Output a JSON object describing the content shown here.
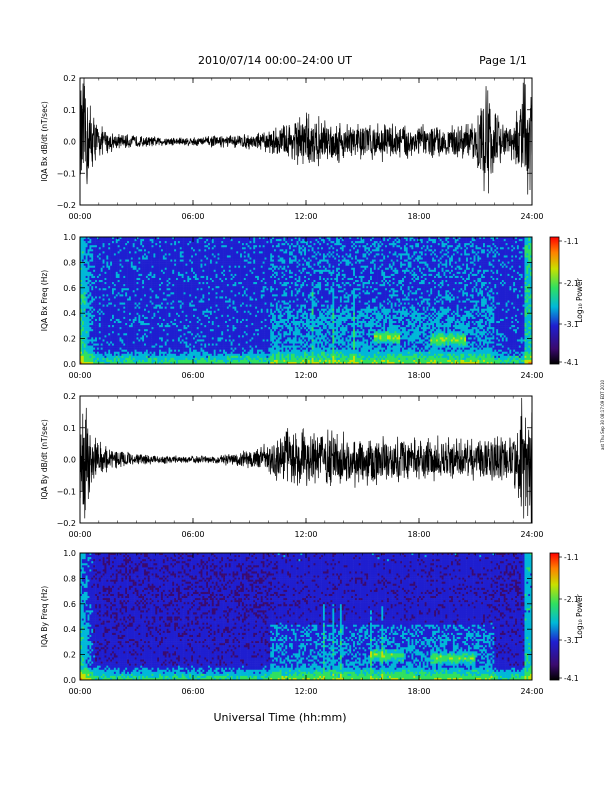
{
  "header": {
    "title": "2010/07/14  00:00–24:00 UT",
    "page": "Page 1/1"
  },
  "footer": {
    "xlabel": "Universal Time (hh:mm)"
  },
  "side_stamp": "ast Thu Sep 30 08:17:09 EDT 2010",
  "colors": {
    "trace": "#000000",
    "colormap": [
      "#000000",
      "#3a0a6e",
      "#1f1fd0",
      "#00b8d8",
      "#30e060",
      "#c8e000",
      "#ff8000",
      "#ff0000"
    ]
  },
  "chart_data": [
    {
      "type": "line",
      "title": "",
      "ylabel": "IQA Bx dB/dt (nT/sec)",
      "xlabel": "",
      "xlim": [
        0,
        24
      ],
      "ylim": [
        -0.2,
        0.2
      ],
      "x_ticks": [
        "00:00",
        "06:00",
        "12:00",
        "18:00",
        "24:00"
      ],
      "y_ticks": [
        "0.2",
        "0.1",
        "0.0",
        "−0.1",
        "−0.2"
      ],
      "series": [
        {
          "x": [
            0,
            0.3,
            0.6,
            1,
            2,
            3,
            4,
            5,
            6,
            7,
            8,
            9,
            10,
            10.5,
            11,
            11.5,
            12,
            12.5,
            13,
            14,
            15,
            16,
            17,
            18,
            19,
            20,
            21,
            21.5,
            22,
            22.5,
            23,
            23.5,
            24
          ],
          "amplitude": [
            0.2,
            0.2,
            0.12,
            0.05,
            0.025,
            0.02,
            0.015,
            0.015,
            0.015,
            0.018,
            0.02,
            0.025,
            0.035,
            0.05,
            0.06,
            0.08,
            0.09,
            0.08,
            0.07,
            0.065,
            0.06,
            0.06,
            0.06,
            0.055,
            0.05,
            0.05,
            0.06,
            0.2,
            0.12,
            0.05,
            0.06,
            0.2,
            0.2
          ]
        }
      ]
    },
    {
      "type": "heatmap",
      "title": "",
      "ylabel": "IQA Bx Freq (Hz)",
      "xlabel": "",
      "xlim": [
        0,
        24
      ],
      "ylim": [
        0,
        1.0
      ],
      "x_ticks": [
        "00:00",
        "06:00",
        "12:00",
        "18:00",
        "24:00"
      ],
      "y_ticks": [
        "1.0",
        "0.8",
        "0.6",
        "0.4",
        "0.2",
        "0.0"
      ],
      "colorbar": {
        "label": "Log₁₀ Power",
        "range": [
          -4.1,
          -1.1
        ],
        "ticks": [
          "-1.1",
          "-2.1",
          "-3.1",
          "-4.1"
        ]
      }
    },
    {
      "type": "line",
      "title": "",
      "ylabel": "IQA By dB/dt (nT/sec)",
      "xlabel": "",
      "xlim": [
        0,
        24
      ],
      "ylim": [
        -0.2,
        0.2
      ],
      "x_ticks": [
        "00:00",
        "06:00",
        "12:00",
        "18:00",
        "24:00"
      ],
      "y_ticks": [
        "0.2",
        "0.1",
        "0.0",
        "−0.1",
        "−0.2"
      ],
      "series": [
        {
          "x": [
            0,
            0.3,
            0.6,
            1,
            2,
            3,
            4,
            5,
            6,
            7,
            8,
            9,
            10,
            10.5,
            11,
            11.5,
            12,
            12.5,
            13,
            14,
            15,
            16,
            17,
            18,
            19,
            20,
            21,
            22,
            23,
            23.5,
            24
          ],
          "amplitude": [
            0.2,
            0.2,
            0.1,
            0.06,
            0.03,
            0.02,
            0.015,
            0.012,
            0.012,
            0.015,
            0.02,
            0.03,
            0.05,
            0.07,
            0.09,
            0.1,
            0.1,
            0.1,
            0.09,
            0.09,
            0.08,
            0.08,
            0.08,
            0.07,
            0.07,
            0.07,
            0.07,
            0.08,
            0.1,
            0.2,
            0.2
          ]
        }
      ]
    },
    {
      "type": "heatmap",
      "title": "",
      "ylabel": "IQA By Freq (Hz)",
      "xlabel": "",
      "xlim": [
        0,
        24
      ],
      "ylim": [
        0,
        1.0
      ],
      "x_ticks": [
        "00:00",
        "06:00",
        "12:00",
        "18:00",
        "24:00"
      ],
      "y_ticks": [
        "1.0",
        "0.8",
        "0.6",
        "0.4",
        "0.2",
        "0.0"
      ],
      "colorbar": {
        "label": "Log₁₀ Power",
        "range": [
          -4.1,
          -1.1
        ],
        "ticks": [
          "-1.1",
          "-2.1",
          "-3.1",
          "-4.1"
        ]
      }
    }
  ]
}
